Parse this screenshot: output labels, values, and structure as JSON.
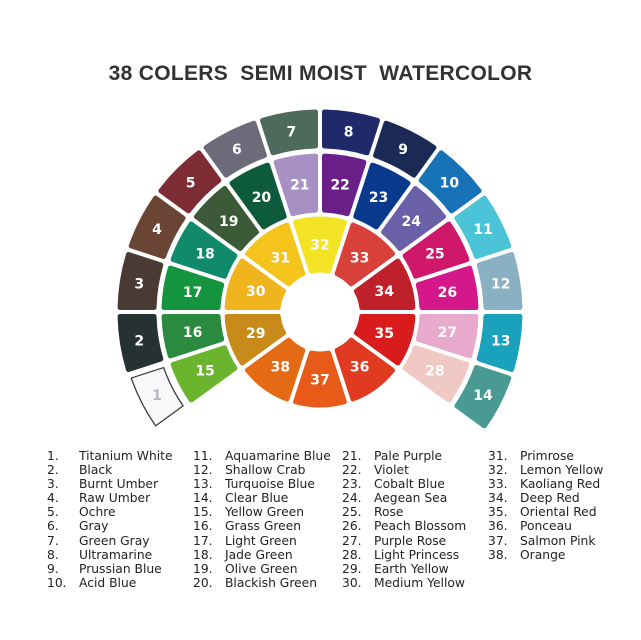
{
  "title": "38 COLERS  SEMI MOIST  WATERCOLOR",
  "swatches": [
    {
      "number": "1",
      "name": "Titanium White",
      "color": "#f8f8fa"
    },
    {
      "number": "2",
      "name": "Black",
      "color": "#263232"
    },
    {
      "number": "3",
      "name": "Burnt Umber",
      "color": "#4a3a33"
    },
    {
      "number": "4",
      "name": "Raw Umber",
      "color": "#6a4434"
    },
    {
      "number": "5",
      "name": "Ochre",
      "color": "#7e2c33"
    },
    {
      "number": "6",
      "name": "Gray",
      "color": "#6b6b7a"
    },
    {
      "number": "7",
      "name": "Green Gray",
      "color": "#4e6a5c"
    },
    {
      "number": "8",
      "name": "Ultramarine",
      "color": "#1e2a6a"
    },
    {
      "number": "9",
      "name": "Prussian Blue",
      "color": "#1b2a55"
    },
    {
      "number": "10",
      "name": "Acid Blue",
      "color": "#1872b8"
    },
    {
      "number": "11",
      "name": "Aquamarine Blue",
      "color": "#4cc4d8"
    },
    {
      "number": "12",
      "name": "Shallow Crab",
      "color": "#8ab0c4"
    },
    {
      "number": "13",
      "name": "Turquoise Blue",
      "color": "#1aa2bc"
    },
    {
      "number": "14",
      "name": "Clear Blue",
      "color": "#4a9a94"
    },
    {
      "number": "15",
      "name": "Yellow Green",
      "color": "#6ab42e"
    },
    {
      "number": "16",
      "name": "Grass Green",
      "color": "#2a8a40"
    },
    {
      "number": "17",
      "name": "Light Green",
      "color": "#14943e"
    },
    {
      "number": "18",
      "name": "Jade Green",
      "color": "#108a6a"
    },
    {
      "number": "19",
      "name": "Olive Green",
      "color": "#3c5a38"
    },
    {
      "number": "20",
      "name": "Blackish Green",
      "color": "#0e5a3c"
    },
    {
      "number": "21",
      "name": "Pale Purple",
      "color": "#a890c4"
    },
    {
      "number": "22",
      "name": "Violet",
      "color": "#6a2088"
    },
    {
      "number": "23",
      "name": "Cobalt Blue",
      "color": "#0a3a8e"
    },
    {
      "number": "24",
      "name": "Aegean Sea",
      "color": "#6a60a8"
    },
    {
      "number": "25",
      "name": "Rose",
      "color": "#d0186a"
    },
    {
      "number": "26",
      "name": "Peach Blossom",
      "color": "#d4188c"
    },
    {
      "number": "27",
      "name": "Purple Rose",
      "color": "#e8aacc"
    },
    {
      "number": "28",
      "name": "Light Princess",
      "color": "#f0c8c4"
    },
    {
      "number": "29",
      "name": "Earth Yellow",
      "color": "#c88a18"
    },
    {
      "number": "30",
      "name": "Medium Yellow",
      "color": "#f0b41e"
    },
    {
      "number": "31",
      "name": "Primrose",
      "color": "#f4c41c"
    },
    {
      "number": "32",
      "name": "Lemon Yellow",
      "color": "#f2e424"
    },
    {
      "number": "33",
      "name": "Kaoliang Red",
      "color": "#d8403a"
    },
    {
      "number": "34",
      "name": "Deep Red",
      "color": "#c0202a"
    },
    {
      "number": "35",
      "name": "Oriental Red",
      "color": "#d81c1e"
    },
    {
      "number": "36",
      "name": "Ponceau",
      "color": "#e03a20"
    },
    {
      "number": "37",
      "name": "Salmon Pink",
      "color": "#e85a18"
    },
    {
      "number": "38",
      "name": "Orange",
      "color": "#e46a14"
    }
  ],
  "legend": [
    {
      "num": "1.",
      "name": "Titanium White"
    },
    {
      "num": "2.",
      "name": "Black"
    },
    {
      "num": "3.",
      "name": "Burnt Umber"
    },
    {
      "num": "4.",
      "name": "Raw Umber"
    },
    {
      "num": "5.",
      "name": "Ochre"
    },
    {
      "num": "6.",
      "name": "Gray"
    },
    {
      "num": "7.",
      "name": "Green Gray"
    },
    {
      "num": "8.",
      "name": "Ultramarine"
    },
    {
      "num": "9.",
      "name": "Prussian Blue"
    },
    {
      "num": "10.",
      "name": "Acid Blue"
    },
    {
      "num": "11.",
      "name": "Aquamarine Blue"
    },
    {
      "num": "12.",
      "name": "Shallow Crab"
    },
    {
      "num": "13.",
      "name": "Turquoise Blue"
    },
    {
      "num": "14.",
      "name": "Clear Blue"
    },
    {
      "num": "15.",
      "name": "Yellow Green"
    },
    {
      "num": "16.",
      "name": "Grass Green"
    },
    {
      "num": "17.",
      "name": "Light Green"
    },
    {
      "num": "18.",
      "name": "Jade Green"
    },
    {
      "num": "19.",
      "name": "Olive Green"
    },
    {
      "num": "20.",
      "name": "Blackish Green"
    },
    {
      "num": "21.",
      "name": "Pale Purple"
    },
    {
      "num": "22.",
      "name": "Violet"
    },
    {
      "num": "23.",
      "name": "Cobalt Blue"
    },
    {
      "num": "24.",
      "name": "Aegean Sea"
    },
    {
      "num": "25.",
      "name": "Rose"
    },
    {
      "num": "26.",
      "name": "Peach Blossom"
    },
    {
      "num": "27.",
      "name": "Purple Rose"
    },
    {
      "num": "28.",
      "name": "Light Princess"
    },
    {
      "num": "29.",
      "name": "Earth Yellow"
    },
    {
      "num": "30.",
      "name": "Medium Yellow"
    },
    {
      "num": "31.",
      "name": "Primrose"
    },
    {
      "num": "32.",
      "name": "Lemon Yellow"
    },
    {
      "num": "33.",
      "name": "Kaoliang Red"
    },
    {
      "num": "34.",
      "name": "Deep Red"
    },
    {
      "num": "35.",
      "name": "Oriental Red"
    },
    {
      "num": "36.",
      "name": "Ponceau"
    },
    {
      "num": "37.",
      "name": "Salmon Pink"
    },
    {
      "num": "38.",
      "name": "Orange"
    }
  ]
}
